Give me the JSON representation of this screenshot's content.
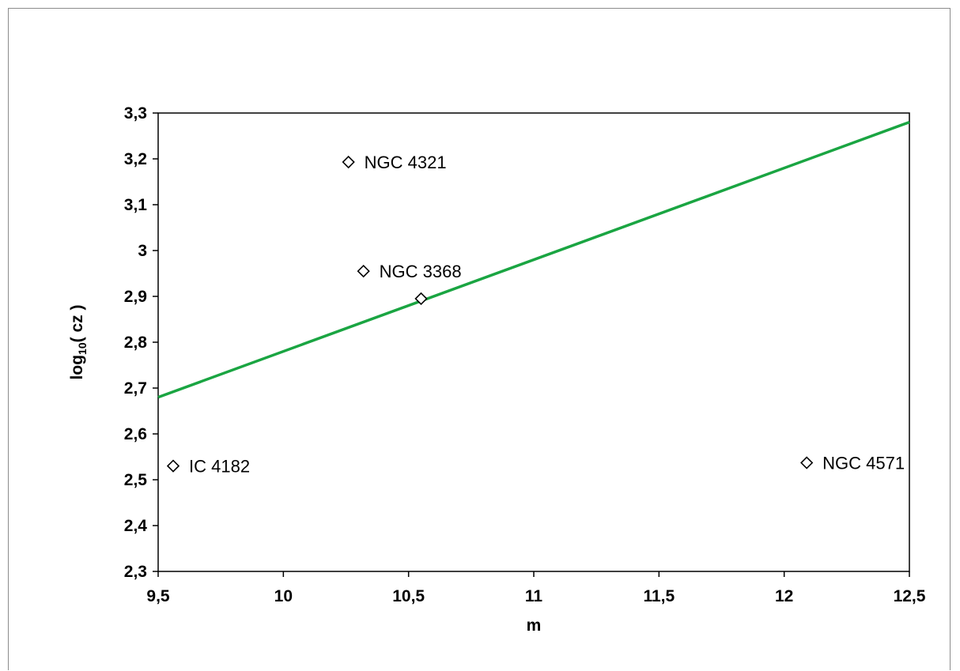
{
  "chart_data": {
    "type": "scatter",
    "title": "",
    "xlabel": "m",
    "ylabel_main": "log",
    "ylabel_sub": "10",
    "ylabel_rest": "( cz )",
    "xlim": [
      9.5,
      12.5
    ],
    "ylim": [
      2.3,
      3.3
    ],
    "x_ticks": [
      9.5,
      10,
      10.5,
      11,
      11.5,
      12,
      12.5
    ],
    "x_tick_labels": [
      "9,5",
      "10",
      "10,5",
      "11",
      "11,5",
      "12",
      "12,5"
    ],
    "y_ticks": [
      2.3,
      2.4,
      2.5,
      2.6,
      2.7,
      2.8,
      2.9,
      3.0,
      3.1,
      3.2,
      3.3
    ],
    "y_tick_labels": [
      "2,3",
      "2,4",
      "2,5",
      "2,6",
      "2,7",
      "2,8",
      "2,9",
      "3",
      "3,1",
      "3,2",
      "3,3"
    ],
    "grid": false,
    "legend": "none",
    "marker": "open-diamond",
    "points": [
      {
        "x": 9.56,
        "y": 2.53,
        "label": "IC 4182"
      },
      {
        "x": 10.26,
        "y": 3.193,
        "label": "NGC 4321"
      },
      {
        "x": 10.32,
        "y": 2.955,
        "label": "NGC 3368"
      },
      {
        "x": 10.55,
        "y": 2.895,
        "label": ""
      },
      {
        "x": 12.09,
        "y": 2.537,
        "label": "NGC 4571"
      }
    ],
    "fit_line": {
      "color": "#1aa542",
      "x": [
        9.5,
        12.5
      ],
      "y": [
        2.68,
        3.28
      ]
    }
  }
}
